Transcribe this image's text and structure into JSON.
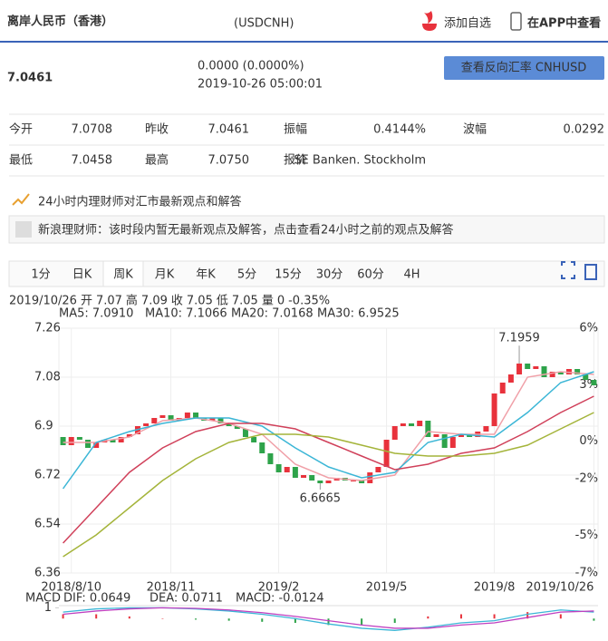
{
  "header": {
    "title": "离岸人民币（香港）",
    "code": "(USDCNH)",
    "actions": [
      "添加自选",
      "在APP中查看"
    ]
  },
  "quote": {
    "price": "7.0461",
    "change": "0.0000 (0.0000%)",
    "time": "2019-10-26 05:00:01",
    "button": "查看反向汇率 CNHUSD"
  },
  "stats": [
    [
      "今开",
      "7.0708",
      "昨收",
      "7.0461",
      "振幅",
      "0.4144%",
      "波幅",
      "0.0292"
    ],
    [
      "最低",
      "7.0458",
      "最高",
      "7.0750",
      "报价",
      "SE Banken. Stockholm"
    ]
  ],
  "notice": {
    "title": "24小时内理财师对汇市最新观点和解答",
    "text": "新浪理财师：该时段内暂无最新观点及解答，点击查看24小时之前的观点及解答"
  },
  "tabs": {
    "items": [
      "1分",
      "日K",
      "周K",
      "月K",
      "年K",
      "5分",
      "15分",
      "30分",
      "60分",
      "4H"
    ],
    "active": 2
  },
  "chart_data": {
    "type": "candlestick",
    "info": [
      "2019/10/26",
      "开",
      "7.07",
      "高",
      "7.09",
      "收",
      "7.05",
      "低",
      "7.05",
      "量",
      "0",
      "-0.35%"
    ],
    "categories": [
      null,
      "2018/8/10",
      null,
      null,
      null,
      null,
      null,
      null,
      null,
      null,
      null,
      null,
      null,
      "2018/11",
      null,
      null,
      null,
      null,
      null,
      null,
      null,
      null,
      null,
      null,
      null,
      null,
      "2019/2",
      null,
      null,
      null,
      null,
      null,
      null,
      null,
      null,
      null,
      null,
      null,
      null,
      "2019/5",
      null,
      null,
      null,
      null,
      null,
      null,
      null,
      null,
      null,
      null,
      null,
      null,
      "2019/8",
      null,
      null,
      null,
      null,
      null,
      null,
      null,
      null,
      null,
      null,
      null,
      "2019/10/26"
    ],
    "open": [
      6.86,
      6.83,
      6.86,
      6.85,
      6.82,
      6.84,
      6.85,
      6.84,
      6.86,
      6.87,
      6.9,
      6.91,
      6.93,
      6.94,
      6.92,
      6.93,
      6.95,
      6.93,
      6.92,
      6.93,
      6.91,
      6.9,
      6.89,
      6.86,
      6.84,
      6.8,
      6.76,
      6.73,
      6.75,
      6.71,
      6.72,
      6.7,
      6.69,
      6.7,
      6.71,
      6.7,
      6.7,
      6.69,
      6.73,
      6.75,
      6.85,
      6.9,
      6.91,
      6.9,
      6.92,
      6.86,
      6.87,
      6.82,
      6.86,
      6.87,
      6.86,
      6.88,
      6.9,
      7.02,
      7.06,
      7.09,
      7.13,
      7.11,
      7.12,
      7.08,
      7.1,
      7.09,
      7.11,
      7.09,
      7.07
    ],
    "close": [
      6.83,
      6.86,
      6.85,
      6.82,
      6.84,
      6.85,
      6.84,
      6.86,
      6.87,
      6.9,
      6.91,
      6.93,
      6.94,
      6.92,
      6.93,
      6.95,
      6.93,
      6.92,
      6.93,
      6.91,
      6.9,
      6.89,
      6.86,
      6.84,
      6.8,
      6.76,
      6.73,
      6.75,
      6.71,
      6.72,
      6.7,
      6.69,
      6.7,
      6.71,
      6.7,
      6.7,
      6.69,
      6.73,
      6.75,
      6.85,
      6.9,
      6.91,
      6.9,
      6.92,
      6.86,
      6.87,
      6.82,
      6.86,
      6.87,
      6.86,
      6.88,
      6.9,
      7.02,
      7.06,
      7.09,
      7.13,
      7.11,
      7.12,
      7.08,
      7.1,
      7.09,
      7.11,
      7.09,
      7.07,
      7.05
    ],
    "up_color": "#e8323c",
    "down_color": "#2ea34a",
    "high_label": 7.1959,
    "low_label": 6.6665,
    "series": [
      {
        "name": "MA5",
        "label": "MA5: 7.0910",
        "color": "#f0a0a8",
        "x": [
          0,
          4,
          8,
          12,
          16,
          20,
          24,
          28,
          32,
          36,
          40,
          44,
          48,
          52,
          56,
          60,
          64
        ],
        "values": [
          6.84,
          6.84,
          6.86,
          6.92,
          6.93,
          6.91,
          6.87,
          6.76,
          6.71,
          6.7,
          6.72,
          6.88,
          6.87,
          6.87,
          7.08,
          7.1,
          7.09
        ]
      },
      {
        "name": "MA10",
        "label": "MA10: 7.1066",
        "color": "#3bb6d6",
        "x": [
          0,
          4,
          8,
          12,
          16,
          20,
          24,
          28,
          32,
          36,
          40,
          44,
          48,
          52,
          56,
          60,
          64
        ],
        "values": [
          6.67,
          6.84,
          6.88,
          6.91,
          6.93,
          6.93,
          6.9,
          6.82,
          6.75,
          6.71,
          6.73,
          6.84,
          6.87,
          6.86,
          6.95,
          7.06,
          7.1
        ]
      },
      {
        "name": "MA20",
        "label": "MA20: 7.0168",
        "color": "#d0405a",
        "x": [
          0,
          4,
          8,
          12,
          16,
          20,
          24,
          28,
          32,
          36,
          40,
          44,
          48,
          52,
          56,
          60,
          64
        ],
        "values": [
          6.47,
          6.6,
          6.73,
          6.82,
          6.88,
          6.91,
          6.91,
          6.89,
          6.84,
          6.79,
          6.74,
          6.76,
          6.8,
          6.82,
          6.88,
          6.95,
          7.01
        ]
      },
      {
        "name": "MA30",
        "label": "MA30: 6.9525",
        "color": "#a4b43a",
        "x": [
          0,
          4,
          8,
          12,
          16,
          20,
          24,
          28,
          32,
          36,
          40,
          44,
          48,
          52,
          56,
          60,
          64
        ],
        "values": [
          6.42,
          6.5,
          6.6,
          6.7,
          6.78,
          6.84,
          6.87,
          6.87,
          6.86,
          6.83,
          6.8,
          6.79,
          6.79,
          6.8,
          6.83,
          6.89,
          6.95
        ]
      }
    ],
    "ylim": [
      6.36,
      7.26
    ],
    "yticks": [
      7.26,
      7.08,
      6.9,
      6.72,
      6.54,
      6.36
    ],
    "y2lim": [
      -7,
      6
    ],
    "y2ticks": [
      {
        "value": 6,
        "label": "6%"
      },
      {
        "value": 3,
        "label": "3%"
      },
      {
        "value": 0,
        "label": "0%"
      },
      {
        "value": -2,
        "label": "-2%"
      },
      {
        "value": -5,
        "label": "-5%"
      },
      {
        "value": -7,
        "label": "-7%"
      }
    ],
    "macd": {
      "title": "MACD",
      "labels": [
        "DIF: 0.0649",
        "DEA: 0.0711",
        "MACD: -0.0124"
      ],
      "ylim": [
        -2,
        1.2
      ],
      "yticks": [
        1
      ],
      "x": [
        0,
        4,
        8,
        12,
        16,
        20,
        24,
        28,
        32,
        36,
        40,
        44,
        48,
        52,
        56,
        60,
        64
      ],
      "dif": [
        0.6,
        0.9,
        1.0,
        1.0,
        0.9,
        0.7,
        0.4,
        0.0,
        -0.5,
        -0.9,
        -1.1,
        -0.8,
        -0.4,
        -0.2,
        0.4,
        0.8,
        0.6
      ],
      "dea": [
        0.4,
        0.7,
        0.9,
        1.0,
        0.95,
        0.8,
        0.55,
        0.2,
        -0.2,
        -0.6,
        -0.9,
        -0.9,
        -0.6,
        -0.4,
        0.1,
        0.6,
        0.7
      ],
      "hist": [
        0.4,
        0.4,
        0.2,
        0,
        -0.1,
        -0.2,
        -0.3,
        -0.4,
        -0.6,
        -0.6,
        -0.4,
        0.2,
        0.4,
        0.4,
        0.6,
        0.4,
        -0.2
      ]
    }
  }
}
